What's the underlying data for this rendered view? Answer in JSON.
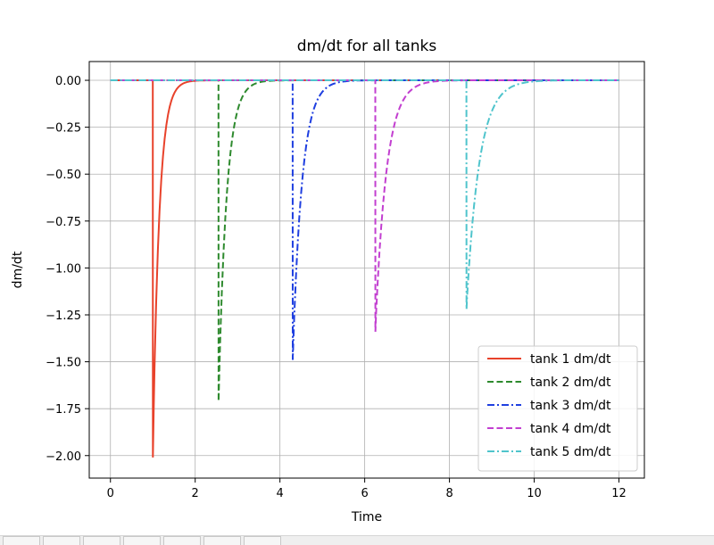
{
  "chart_data": {
    "type": "line",
    "title": "dm/dt for all tanks",
    "xlabel": "Time",
    "ylabel": "dm/dt",
    "xlim": [
      -0.5,
      12.6
    ],
    "ylim": [
      -2.12,
      0.1
    ],
    "xticks": [
      0,
      2,
      4,
      6,
      8,
      10,
      12
    ],
    "xtick_labels": [
      "0",
      "2",
      "4",
      "6",
      "8",
      "10",
      "12"
    ],
    "yticks": [
      0.0,
      -0.25,
      -0.5,
      -0.75,
      -1.0,
      -1.25,
      -1.5,
      -1.75,
      -2.0
    ],
    "ytick_labels": [
      "0.00",
      "−0.25",
      "−0.50",
      "−0.75",
      "−1.00",
      "−1.25",
      "−1.50",
      "−1.75",
      "−2.00"
    ],
    "grid": true,
    "legend_position": "lower-right",
    "x_range": [
      0,
      12
    ],
    "series": [
      {
        "name": "tank 1 dm/dt",
        "color": "#e8422b",
        "dash": "solid",
        "t_start": 1.0,
        "t_end": 1.9,
        "min": -2.01,
        "decay": 0.15
      },
      {
        "name": "tank 2 dm/dt",
        "color": "#2e8a2e",
        "dash": "dashed",
        "t_start": 2.55,
        "t_end": 3.7,
        "min": -1.71,
        "decay": 0.19
      },
      {
        "name": "tank 3 dm/dt",
        "color": "#1f3fe0",
        "dash": "dashdot",
        "t_start": 4.3,
        "t_end": 5.6,
        "min": -1.49,
        "decay": 0.22
      },
      {
        "name": "tank 4 dm/dt",
        "color": "#c23fd0",
        "dash": "dashed",
        "t_start": 6.25,
        "t_end": 7.7,
        "min": -1.34,
        "decay": 0.26
      },
      {
        "name": "tank 5 dm/dt",
        "color": "#4fc4cc",
        "dash": "dashdot",
        "t_start": 8.4,
        "t_end": 10.0,
        "min": -1.22,
        "decay": 0.3
      }
    ]
  },
  "taskbar": {
    "tab_count": 7
  }
}
